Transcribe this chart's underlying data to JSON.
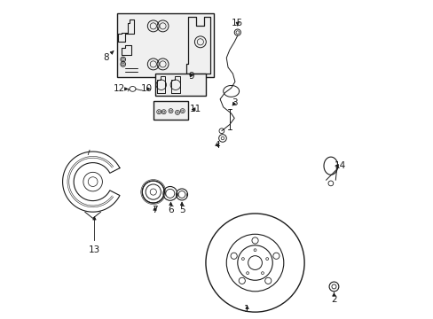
{
  "bg_color": "#ffffff",
  "line_color": "#1a1a1a",
  "figsize": [
    4.89,
    3.6
  ],
  "dpi": 100,
  "parts_labels": {
    "1": [
      0.595,
      0.045,
      0.595,
      0.055
    ],
    "2": [
      0.868,
      0.072,
      0.868,
      0.08
    ],
    "3": [
      0.54,
      0.58,
      0.527,
      0.592
    ],
    "4": [
      0.518,
      0.54,
      0.505,
      0.548
    ],
    "5": [
      0.39,
      0.37,
      0.39,
      0.355
    ],
    "6": [
      0.355,
      0.37,
      0.355,
      0.355
    ],
    "7": [
      0.305,
      0.375,
      0.305,
      0.36
    ],
    "8": [
      0.175,
      0.82,
      0.155,
      0.82
    ],
    "9": [
      0.4,
      0.77,
      0.415,
      0.77
    ],
    "10": [
      0.3,
      0.72,
      0.285,
      0.72
    ],
    "11": [
      0.415,
      0.66,
      0.43,
      0.66
    ],
    "12": [
      0.22,
      0.725,
      0.205,
      0.725
    ],
    "13": [
      0.115,
      0.24,
      0.115,
      0.225
    ],
    "14": [
      0.87,
      0.49,
      0.885,
      0.49
    ],
    "15": [
      0.565,
      0.91,
      0.565,
      0.925
    ]
  }
}
